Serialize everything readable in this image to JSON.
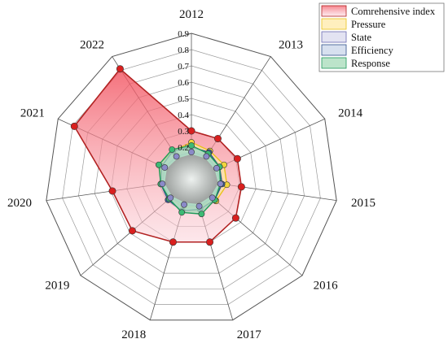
{
  "chart_data": {
    "type": "radar",
    "categories": [
      "2012",
      "2013",
      "2014",
      "2015",
      "2016",
      "2017",
      "2018",
      "2019",
      "2020",
      "2021",
      "2022"
    ],
    "radial_ticks": [
      "0.2",
      "0.3",
      "0.4",
      "0.5",
      "0.6",
      "0.7",
      "0.8",
      "0.9"
    ],
    "rlim": [
      0,
      0.9
    ],
    "grid": true,
    "legend_position": "top-right",
    "series": [
      {
        "name": "Comrehensive index",
        "values": [
          0.3,
          0.3,
          0.31,
          0.31,
          0.36,
          0.4,
          0.4,
          0.48,
          0.49,
          0.79,
          0.81
        ],
        "fill": "#f4a3a8",
        "line": "#b22222",
        "marker": "#d9201f"
      },
      {
        "name": "Pressure",
        "values": [
          0.23,
          0.21,
          0.22,
          0.22,
          0.2,
          0.17,
          0.18,
          0.17,
          0.18,
          0.22,
          0.21
        ],
        "fill": "#ffe9a8",
        "line": "#e8c21a",
        "marker": "#f2d53c"
      },
      {
        "name": "State",
        "values": [
          0.17,
          0.17,
          0.17,
          0.18,
          0.17,
          0.17,
          0.16,
          0.17,
          0.18,
          0.18,
          0.17
        ],
        "fill": "#d9d9ee",
        "line": "#6a6ab0",
        "marker": "#8a8ac8"
      },
      {
        "name": "Efficiency",
        "values": [
          0.2,
          0.2,
          0.19,
          0.19,
          0.19,
          0.19,
          0.2,
          0.19,
          0.19,
          0.2,
          0.21
        ],
        "fill": "#c9d6ea",
        "line": "#2f4f8a",
        "marker": "#3b5fa0"
      },
      {
        "name": "Response",
        "values": [
          0.21,
          0.19,
          0.19,
          0.18,
          0.19,
          0.22,
          0.21,
          0.18,
          0.19,
          0.22,
          0.22
        ],
        "fill": "#a6dbb8",
        "line": "#1f9a5a",
        "marker": "#3cba74"
      }
    ]
  }
}
